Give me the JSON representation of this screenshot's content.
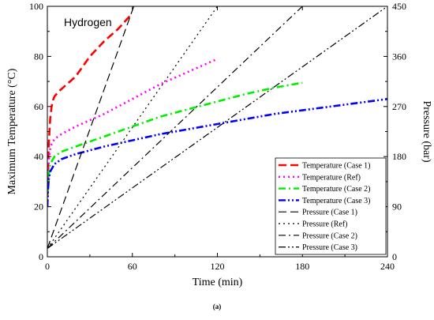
{
  "chart_data": {
    "type": "line",
    "annotation": "Hydrogen",
    "caption": "(a)",
    "xlabel": "Time (min)",
    "ylabel_left": "Maximum Temperature (°C)",
    "ylabel_right": "Pressure (bar)",
    "xlim": [
      0,
      240
    ],
    "ylim_left": [
      0,
      100
    ],
    "ylim_right": [
      0,
      450
    ],
    "x_ticks": [
      0,
      60,
      120,
      180,
      240
    ],
    "y_left_ticks": [
      0,
      20,
      40,
      60,
      80,
      100
    ],
    "y_right_ticks": [
      0,
      90,
      180,
      270,
      360,
      450
    ],
    "grid": false,
    "legend_position": "bottom-right",
    "series": [
      {
        "name": "Temperature (Case 1)",
        "axis": "left",
        "color": "#ff0000",
        "dash": "long-dash",
        "x": [
          0,
          0.5,
          1,
          2,
          3,
          4,
          5,
          8,
          12,
          20,
          30,
          40,
          50,
          58
        ],
        "y": [
          20,
          35,
          45,
          55,
          60,
          62.5,
          64,
          66,
          68,
          72,
          80,
          86,
          91,
          96
        ]
      },
      {
        "name": "Temperature (Ref)",
        "axis": "left",
        "color": "#ff00ff",
        "dash": "dot",
        "x": [
          0,
          0.5,
          1,
          2,
          3,
          5,
          10,
          20,
          40,
          60,
          80,
          100,
          120
        ],
        "y": [
          20,
          30,
          38,
          43,
          45,
          47,
          49,
          52,
          57,
          63,
          69,
          74,
          79
        ]
      },
      {
        "name": "Temperature (Case 2)",
        "axis": "left",
        "color": "#00ee00",
        "dash": "dash-dot",
        "x": [
          0,
          0.5,
          1,
          2,
          5,
          10,
          20,
          40,
          60,
          80,
          100,
          120,
          140,
          160,
          180
        ],
        "y": [
          20,
          28,
          33,
          37,
          40,
          42,
          44,
          48,
          52,
          56,
          59,
          62,
          65,
          67.5,
          69.5
        ]
      },
      {
        "name": "Temperature (Case 3)",
        "axis": "left",
        "color": "#0000ff",
        "dash": "dash-dot-dot",
        "x": [
          0,
          0.5,
          1,
          2,
          5,
          10,
          20,
          40,
          60,
          80,
          100,
          120,
          140,
          160,
          180,
          200,
          220,
          240
        ],
        "y": [
          20,
          27,
          31,
          34,
          37,
          39,
          41,
          44,
          46.5,
          49,
          51,
          53,
          55,
          57,
          58.5,
          60,
          61.5,
          63
        ]
      },
      {
        "name": "Pressure (Case 1)",
        "axis": "right",
        "color": "#000000",
        "dash": "long-dash",
        "x": [
          0,
          61
        ],
        "y": [
          15,
          450
        ]
      },
      {
        "name": "Pressure (Ref)",
        "axis": "right",
        "color": "#000000",
        "dash": "dot",
        "x": [
          0,
          120
        ],
        "y": [
          15,
          450
        ]
      },
      {
        "name": "Pressure (Case 2)",
        "axis": "right",
        "color": "#000000",
        "dash": "dash-dot",
        "x": [
          0,
          180
        ],
        "y": [
          15,
          450
        ]
      },
      {
        "name": "Pressure (Case 3)",
        "axis": "right",
        "color": "#000000",
        "dash": "dash-dot-dot",
        "x": [
          0,
          240
        ],
        "y": [
          15,
          450
        ]
      }
    ]
  }
}
